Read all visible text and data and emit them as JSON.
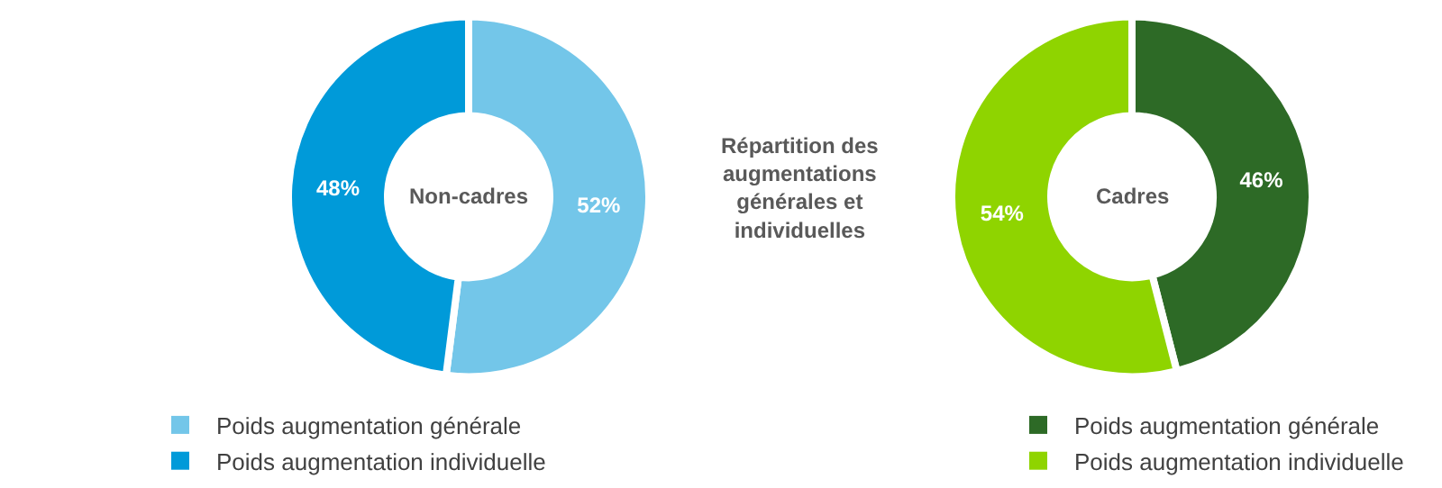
{
  "chart_data": [
    {
      "type": "donut",
      "title": "Répartition des augmentations générales et individuelles",
      "annotations": [
        "Non-cadres"
      ],
      "categories": [
        "Poids augmentation générale",
        "Poids augmentation individuelle"
      ],
      "values": [
        52,
        48
      ],
      "value_labels": [
        "52%",
        "48%"
      ],
      "colors": [
        "#73c6e9",
        "#009ad9"
      ],
      "legend": "bottom left"
    },
    {
      "type": "donut",
      "annotations": [
        "Cadres"
      ],
      "categories": [
        "Poids augmentation générale",
        "Poids augmentation individuelle"
      ],
      "values": [
        46,
        54
      ],
      "value_labels": [
        "46%",
        "54%"
      ],
      "colors": [
        "#2d6a26",
        "#8fd400"
      ],
      "legend": "bottom right"
    }
  ]
}
